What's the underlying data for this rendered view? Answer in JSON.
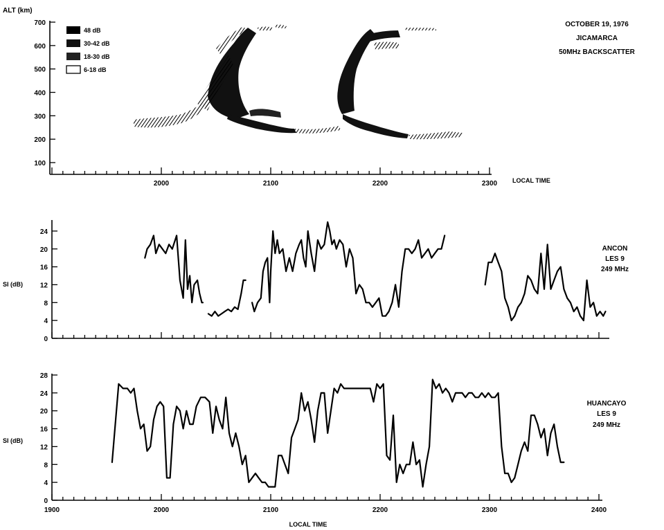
{
  "chart_data": [
    {
      "type": "heatmap",
      "title_lines": [
        "OCTOBER 19, 1976",
        "JICAMARCA",
        "50MHz BACKSCATTER"
      ],
      "ylabel": "ALT (km)",
      "xlabel": "LOCAL TIME",
      "yticks": [
        100,
        200,
        300,
        400,
        500,
        600,
        700
      ],
      "xticks": [
        2000,
        2100,
        2200,
        2300
      ],
      "legend": [
        {
          "label": "48 dB",
          "color": "#000000"
        },
        {
          "label": "30-42 dB",
          "color": "#1a1a1a"
        },
        {
          "label": "18-30 dB",
          "color": "#333333"
        },
        {
          "label": "6-18 dB",
          "color": "#ffffff"
        }
      ],
      "legend_position": "top-left"
    },
    {
      "type": "line",
      "ylabel": "SI (dB)",
      "yticks": [
        0,
        4,
        8,
        12,
        16,
        20,
        24
      ],
      "ylim": [
        0,
        26
      ],
      "xlim": [
        1900,
        2400
      ],
      "annotation": [
        "ANCON",
        "LES 9",
        "249 MHz"
      ],
      "series": [
        {
          "segments": [
            {
              "x": [
                1985,
                1987,
                1990,
                1993,
                1995,
                1998,
                2001,
                2004,
                2007,
                2010,
                2014,
                2017,
                2020,
                2022,
                2024,
                2026,
                2028,
                2030,
                2033,
                2035,
                2037,
                2038
              ],
              "y": [
                18,
                20,
                21,
                23,
                19,
                21,
                20,
                19,
                21,
                20,
                23,
                13,
                9,
                22,
                11,
                14,
                8,
                12,
                13,
                10,
                8,
                8
              ]
            },
            {
              "x": [
                2043,
                2046,
                2049,
                2052,
                2055,
                2058,
                2061,
                2064,
                2067,
                2070,
                2073,
                2075,
                2077
              ],
              "y": [
                5.5,
                5,
                6,
                5,
                5.5,
                6,
                6.5,
                6,
                7,
                6.5,
                10,
                13,
                13
              ]
            },
            {
              "x": [
                2083,
                2085,
                2088,
                2091,
                2093,
                2095,
                2097,
                2099,
                2100,
                2102,
                2104,
                2106,
                2108,
                2111,
                2114,
                2117,
                2120,
                2123,
                2126,
                2128,
                2130,
                2132,
                2134,
                2137,
                2140,
                2143,
                2146,
                2149,
                2152,
                2154,
                2156,
                2158,
                2160,
                2163,
                2166,
                2169,
                2172,
                2175,
                2178,
                2181,
                2184,
                2187,
                2190,
                2193,
                2196,
                2199,
                2202,
                2205,
                2208,
                2211,
                2214,
                2217,
                2220,
                2223,
                2226,
                2229,
                2232,
                2235,
                2238,
                2241,
                2244,
                2247,
                2250,
                2253,
                2256,
                2259
              ],
              "y": [
                8,
                6,
                8,
                9,
                15,
                17,
                18,
                8,
                15,
                24,
                19,
                22,
                19,
                20,
                15,
                18,
                15,
                19,
                21,
                22,
                18,
                16,
                24,
                19,
                15,
                22,
                20,
                21,
                26,
                24,
                21,
                22,
                20,
                22,
                21,
                16,
                20,
                18,
                10,
                12,
                11,
                8,
                8,
                7,
                8,
                9,
                5,
                5,
                6,
                8,
                12,
                7,
                15,
                20,
                20,
                19,
                20,
                22,
                18,
                19,
                20,
                18,
                19,
                20,
                20,
                23
              ]
            },
            {
              "x": [
                2296,
                2299,
                2302,
                2305,
                2308,
                2311,
                2314,
                2317,
                2320,
                2323,
                2326,
                2329,
                2332,
                2335,
                2338,
                2341,
                2344,
                2347,
                2350,
                2353,
                2356,
                2359,
                2362,
                2365,
                2368,
                2371,
                2374,
                2377,
                2380,
                2383,
                2386,
                2389,
                2392,
                2395,
                2398,
                2401,
                2404,
                2406
              ],
              "y": [
                12,
                17,
                17,
                19,
                17,
                15,
                9,
                7,
                4,
                5,
                7,
                8,
                10,
                14,
                13,
                11,
                10,
                19,
                11,
                21,
                11,
                13,
                15,
                16,
                11,
                9,
                8,
                6,
                7,
                5,
                4,
                13,
                7,
                8,
                5,
                6,
                5,
                6
              ]
            }
          ]
        }
      ]
    },
    {
      "type": "line",
      "ylabel": "SI (dB)",
      "xlabel": "LOCAL TIME",
      "yticks": [
        0,
        4,
        8,
        12,
        16,
        20,
        24,
        28
      ],
      "ylim": [
        0,
        28
      ],
      "xticks": [
        1900,
        2000,
        2100,
        2200,
        2300,
        2400
      ],
      "xlim": [
        1900,
        2400
      ],
      "annotation": [
        "HUANCAYO",
        "LES 9",
        "249 MHz"
      ],
      "series": [
        {
          "segments": [
            {
              "x": [
                1955,
                1961,
                1965,
                1969,
                1972,
                1975,
                1978,
                1981,
                1984,
                1987,
                1990,
                1993,
                1996,
                1999,
                2002,
                2005,
                2008,
                2011,
                2014,
                2017,
                2020,
                2023,
                2026,
                2029,
                2032,
                2036,
                2040,
                2044,
                2047,
                2050,
                2053,
                2056,
                2059,
                2062,
                2065,
                2068,
                2071,
                2074,
                2077,
                2080,
                2083,
                2086,
                2089,
                2092,
                2095,
                2098,
                2101,
                2104,
                2107,
                2110,
                2113,
                2116,
                2119,
                2122,
                2125,
                2128,
                2131,
                2134,
                2137,
                2140,
                2143,
                2146,
                2149,
                2152,
                2155,
                2158,
                2161,
                2164,
                2167,
                2170,
                2173,
                2176,
                2179,
                2182,
                2185,
                2188,
                2191,
                2194,
                2197,
                2200,
                2203,
                2206,
                2209,
                2212,
                2215,
                2218,
                2221,
                2224,
                2227,
                2230,
                2233,
                2236,
                2239,
                2242,
                2245,
                2248,
                2251,
                2254,
                2257,
                2260,
                2263,
                2266,
                2269,
                2272,
                2275,
                2278,
                2281,
                2284,
                2287,
                2290,
                2293,
                2296,
                2299,
                2302,
                2305,
                2308,
                2311,
                2314,
                2317,
                2320,
                2323,
                2326,
                2329,
                2332,
                2335,
                2338,
                2341,
                2344,
                2347,
                2350,
                2353,
                2356,
                2359,
                2362,
                2365,
                2368
              ],
              "y": [
                8.5,
                26,
                25,
                25,
                24,
                25,
                20,
                16,
                17,
                11,
                12,
                18,
                21,
                22,
                21,
                5,
                5,
                17,
                21,
                20,
                16,
                20,
                17,
                17,
                21,
                23,
                23,
                22,
                15,
                21,
                18,
                16,
                23,
                15,
                12,
                15,
                12,
                8,
                10,
                4,
                5,
                6,
                5,
                4,
                4,
                3,
                3,
                3,
                10,
                10,
                8,
                6,
                14,
                16,
                18,
                24,
                20,
                22,
                18,
                13,
                20,
                24,
                24,
                15,
                20,
                25,
                24,
                26,
                25,
                25,
                25,
                25,
                25,
                25,
                25,
                25,
                25,
                22,
                26,
                25,
                26,
                10,
                9,
                19,
                4,
                8,
                6,
                8,
                8,
                13,
                8,
                9,
                3,
                8,
                12,
                27,
                25,
                26,
                24,
                25,
                24,
                22,
                24,
                24,
                24,
                23,
                24,
                24,
                23,
                23,
                24,
                23,
                24,
                23,
                23,
                24,
                12,
                6,
                6,
                4,
                5,
                8,
                11,
                13,
                11,
                19,
                19,
                17,
                14,
                16,
                10,
                15,
                17,
                12,
                8.5,
                8.5
              ]
            }
          ]
        }
      ]
    }
  ]
}
